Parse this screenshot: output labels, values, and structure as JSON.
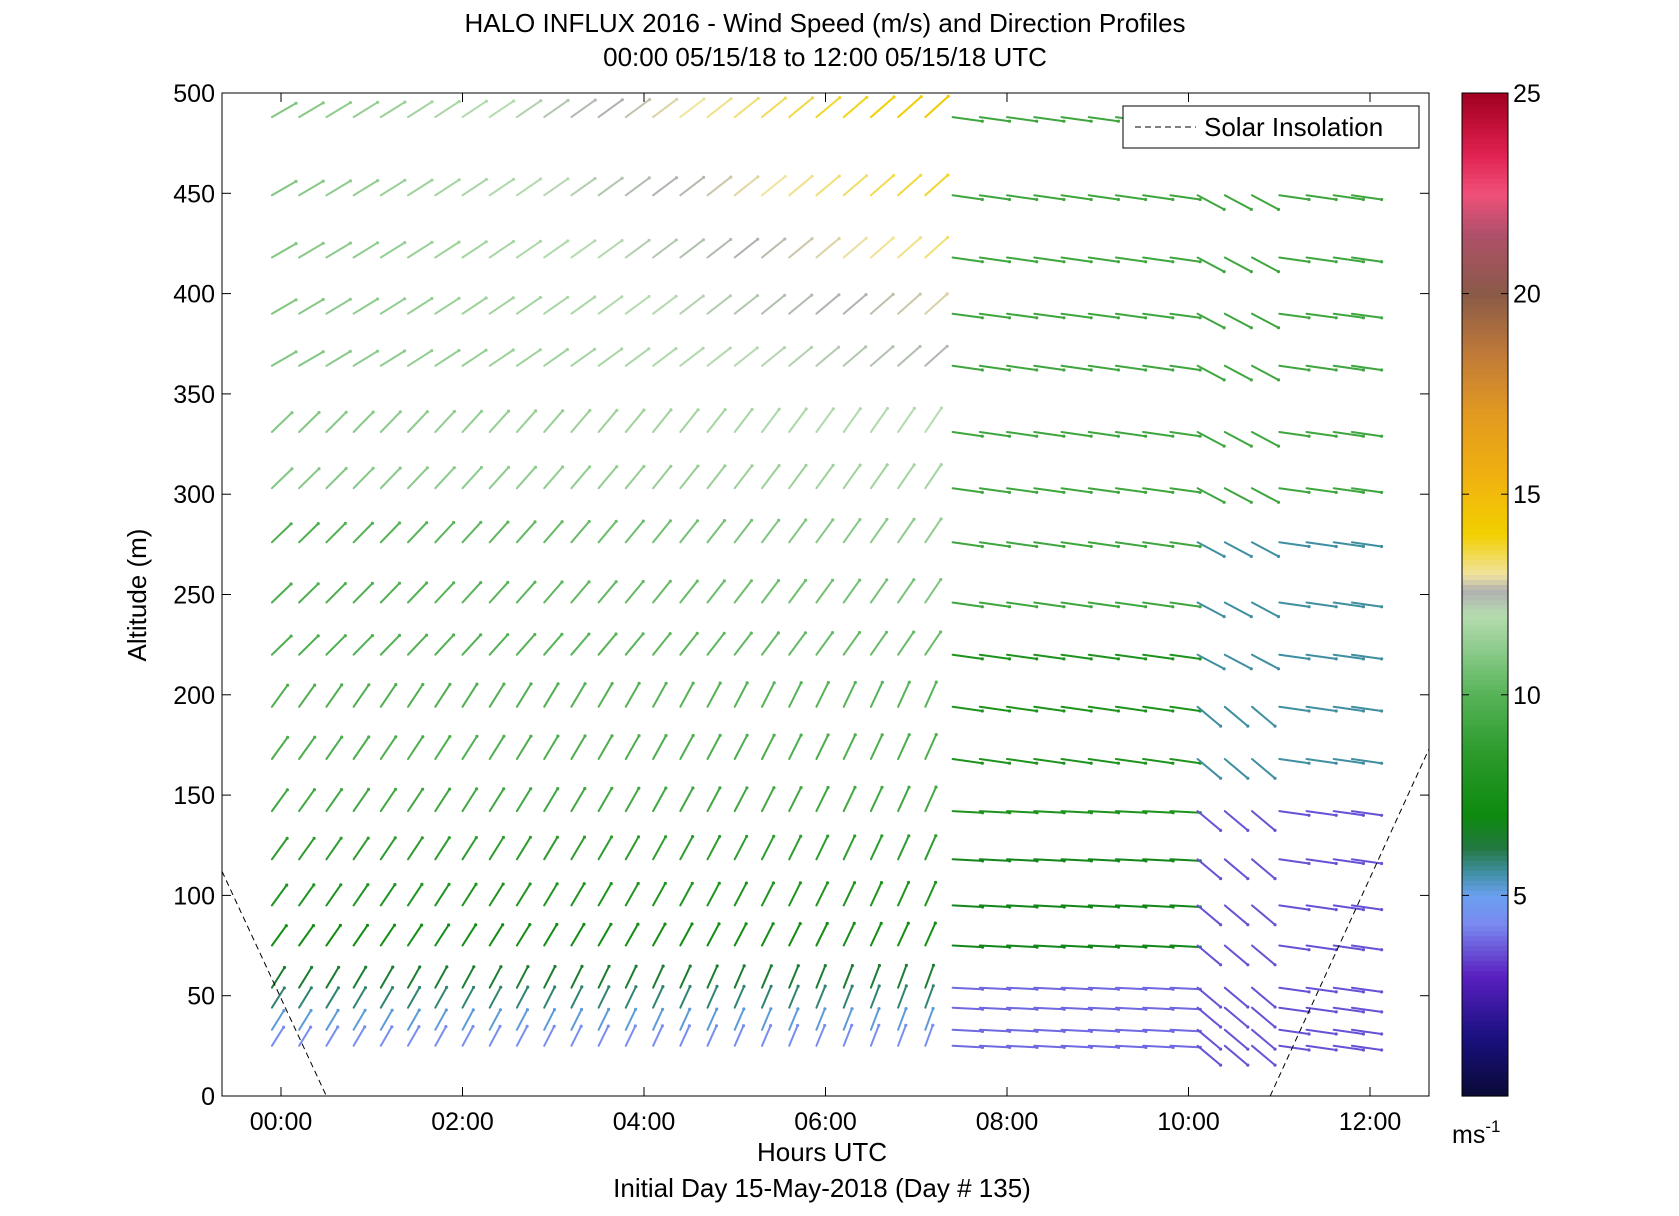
{
  "chart_data": {
    "type": "vector-field",
    "title": "HALO INFLUX 2016 - Wind Speed (m/s) and Direction Profiles",
    "subtitle": "00:00 05/15/18 to 12:00 05/15/18  UTC",
    "xlabel": "Hours UTC",
    "x_sublabel": "Initial Day 15-May-2018 (Day # 135)",
    "ylabel": "Altitude (m)",
    "xlim": [
      -0.65,
      12.65
    ],
    "ylim": [
      0,
      500
    ],
    "x_ticks": [
      0,
      2,
      4,
      6,
      8,
      10,
      12
    ],
    "x_tick_labels": [
      "00:00",
      "02:00",
      "04:00",
      "06:00",
      "08:00",
      "10:00",
      "12:00"
    ],
    "y_ticks": [
      0,
      50,
      100,
      150,
      200,
      250,
      300,
      350,
      400,
      450,
      500
    ],
    "y_tick_labels": [
      "0",
      "50",
      "100",
      "150",
      "200",
      "250",
      "300",
      "350",
      "400",
      "450",
      "500"
    ],
    "legend": {
      "placement": "top-right",
      "entries": [
        "Solar Insolation"
      ]
    },
    "colorbar": {
      "range": [
        0,
        25
      ],
      "ticks": [
        5,
        10,
        15,
        20,
        25
      ],
      "tick_labels": [
        "5",
        "10",
        "15",
        "20",
        "25"
      ],
      "unit_base": "ms",
      "unit_exp": "-1"
    },
    "solar_insolation": {
      "left_segment": [
        [
          -0.65,
          112
        ],
        [
          0.5,
          0
        ]
      ],
      "right_segment": [
        [
          10.9,
          0
        ],
        [
          12.65,
          173
        ]
      ]
    },
    "altitudes": [
      25,
      33,
      44,
      54,
      75,
      95,
      118,
      142,
      168,
      194,
      220,
      246,
      276,
      303,
      331,
      364,
      390,
      418,
      449,
      488
    ],
    "times_early": [
      -0.1,
      0.2,
      0.5,
      0.8,
      1.1,
      1.4,
      1.7,
      2.0,
      2.3,
      2.6,
      2.9,
      3.2,
      3.5,
      3.8,
      4.1,
      4.4,
      4.7,
      5.0,
      5.3,
      5.6,
      5.9,
      6.2,
      6.5,
      6.8,
      7.1
    ],
    "times_late": [
      7.4,
      7.7,
      8.0,
      8.3,
      8.6,
      8.9,
      9.2,
      9.5,
      9.8,
      10.1,
      10.4,
      10.7,
      11.0,
      11.3,
      11.6,
      11.8
    ]
  }
}
